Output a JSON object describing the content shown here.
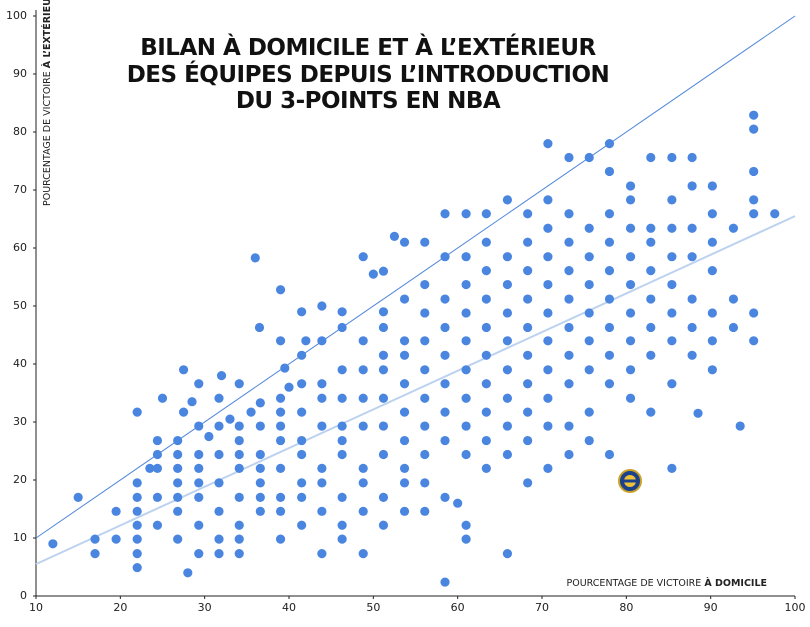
{
  "chart_data": {
    "type": "scatter",
    "title": [
      "BILAN À DOMICILE ET À L’EXTÉRIEUR",
      "DES ÉQUIPES DEPUIS L’INTRODUCTION",
      "DU 3-POINTS EN NBA"
    ],
    "x_label": [
      "POURCENTAGE DE VICTOIRE",
      "À DOMICILE"
    ],
    "y_label": [
      "POURCENTAGE DE VICTOIRE",
      "À L’EXTÉRIEUR"
    ],
    "xlim": [
      10,
      100
    ],
    "ylim": [
      0,
      100
    ],
    "xticks": [
      10,
      20,
      30,
      40,
      50,
      60,
      70,
      80,
      90,
      100
    ],
    "yticks": [
      0,
      10,
      20,
      30,
      40,
      50,
      60,
      70,
      80,
      90,
      100
    ],
    "grid": false,
    "series": [
      {
        "color": "#4a86e0",
        "x": [
          12,
          15,
          17,
          17,
          19.5,
          19.5,
          22,
          22,
          22,
          22,
          22,
          22,
          22,
          22,
          23.5,
          24.4,
          24.4,
          24.4,
          24.4,
          24.4,
          25,
          26.8,
          26.8,
          26.8,
          26.8,
          26.8,
          26.8,
          26.8,
          27.5,
          27.5,
          28,
          28.5,
          29.3,
          29.3,
          29.3,
          29.3,
          29.3,
          29.3,
          29.3,
          29.3,
          30.5,
          31.7,
          31.7,
          31.7,
          31.7,
          31.7,
          31.7,
          31.7,
          32,
          33,
          34.1,
          34.1,
          34.1,
          34.1,
          34.1,
          34.1,
          34.1,
          34.1,
          34.1,
          35.5,
          36,
          36.6,
          36.6,
          36.6,
          36.6,
          36.6,
          36.6,
          36.6,
          36.5,
          39,
          39,
          39,
          39,
          39,
          39,
          39,
          39,
          39,
          39,
          39.5,
          40,
          41.5,
          41.5,
          41.5,
          41.5,
          41.5,
          41.5,
          41.5,
          41.5,
          41.5,
          42,
          43.9,
          43.9,
          43.9,
          43.9,
          43.9,
          43.9,
          43.9,
          43.9,
          43.9,
          46.3,
          46.3,
          46.3,
          46.3,
          46.3,
          46.3,
          46.3,
          46.3,
          46.3,
          46.3,
          48.8,
          48.8,
          48.8,
          48.8,
          48.8,
          48.8,
          48.8,
          48.8,
          48.8,
          50,
          51.2,
          51.2,
          51.2,
          51.2,
          51.2,
          51.2,
          51.2,
          51.2,
          51.2,
          51.2,
          52.5,
          53.7,
          53.7,
          53.7,
          53.7,
          53.7,
          53.7,
          53.7,
          53.7,
          53.7,
          53.7,
          56.1,
          56.1,
          56.1,
          56.1,
          56.1,
          56.1,
          56.1,
          56.1,
          56.1,
          56.1,
          58.5,
          58.5,
          58.5,
          58.5,
          58.5,
          58.5,
          58.5,
          58.5,
          58.5,
          58.5,
          60,
          61,
          61,
          61,
          61,
          61,
          61,
          61,
          61,
          61,
          61,
          61,
          63.4,
          63.4,
          63.4,
          63.4,
          63.4,
          63.4,
          63.4,
          63.4,
          63.4,
          63.4,
          65.9,
          65.9,
          65.9,
          65.9,
          65.9,
          65.9,
          65.9,
          65.9,
          65.9,
          65.9,
          68.3,
          68.3,
          68.3,
          68.3,
          68.3,
          68.3,
          68.3,
          68.3,
          68.3,
          68.3,
          70.7,
          70.7,
          70.7,
          70.7,
          70.7,
          70.7,
          70.7,
          70.7,
          70.7,
          70.7,
          70.7,
          73.2,
          73.2,
          73.2,
          73.2,
          73.2,
          73.2,
          73.2,
          73.2,
          73.2,
          73.2,
          75.6,
          75.6,
          75.6,
          75.6,
          75.6,
          75.6,
          75.6,
          75.6,
          75.6,
          78,
          78,
          78,
          78,
          78,
          78,
          78,
          78,
          78,
          78,
          80.5,
          80.5,
          80.5,
          80.5,
          80.5,
          80.5,
          80.5,
          80.5,
          80.5,
          82.9,
          82.9,
          82.9,
          82.9,
          82.9,
          82.9,
          82.9,
          82.9,
          85.4,
          85.4,
          85.4,
          85.4,
          85.4,
          85.4,
          85.4,
          85.4,
          85.4,
          87.8,
          87.8,
          87.8,
          87.8,
          87.8,
          87.8,
          87.8,
          88.5,
          90.2,
          90.2,
          90.2,
          90.2,
          90.2,
          90.2,
          90.2,
          92.7,
          92.7,
          92.7,
          93.5,
          95.1,
          95.1,
          95.1,
          95.1,
          95.1,
          95.1,
          95.1,
          97.6
        ],
        "values": [
          9,
          17,
          7.3,
          9.8,
          14.6,
          9.8,
          4.9,
          7.3,
          9.8,
          12.2,
          14.6,
          17,
          19.5,
          31.7,
          22,
          12.2,
          17,
          24.4,
          26.8,
          22,
          34.1,
          14.6,
          17,
          19.5,
          22,
          24.4,
          26.8,
          9.8,
          31.7,
          39,
          4,
          33.5,
          12.2,
          17,
          19.5,
          22,
          24.4,
          29.3,
          7.3,
          36.6,
          27.5,
          9.8,
          14.6,
          19.5,
          24.4,
          29.3,
          34.1,
          7.3,
          38,
          30.5,
          7.3,
          12.2,
          17,
          22,
          24.4,
          26.8,
          29.3,
          36.6,
          9.8,
          31.7,
          58.3,
          14.6,
          17,
          19.5,
          22,
          24.4,
          29.3,
          33.3,
          46.3,
          9.8,
          14.6,
          17,
          22,
          26.8,
          29.3,
          31.7,
          34.1,
          44,
          52.8,
          39.3,
          36,
          12.2,
          17,
          19.5,
          24.4,
          26.8,
          31.7,
          36.6,
          41.5,
          49,
          44,
          7.3,
          14.6,
          19.5,
          22,
          29.3,
          34.1,
          36.6,
          44,
          50,
          9.8,
          12.2,
          17,
          24.4,
          26.8,
          29.3,
          34.1,
          39,
          46.3,
          49,
          7.3,
          14.6,
          19.5,
          22,
          29.3,
          34.1,
          39,
          44,
          58.5,
          55.5,
          12.2,
          17,
          24.4,
          29.3,
          34.1,
          39,
          41.5,
          46.3,
          49,
          56,
          62,
          14.6,
          19.5,
          22,
          26.8,
          31.7,
          36.6,
          41.5,
          44,
          51.2,
          61,
          14.6,
          19.5,
          24.4,
          29.3,
          34.1,
          39,
          44,
          48.8,
          53.7,
          61,
          2.4,
          17,
          26.8,
          31.7,
          36.6,
          41.5,
          46.3,
          51.2,
          58.5,
          65.9,
          16,
          9.8,
          12.2,
          24.4,
          29.3,
          34.1,
          39,
          44,
          48.8,
          53.7,
          58.5,
          65.9,
          22,
          26.8,
          31.7,
          36.6,
          41.5,
          46.3,
          51.2,
          56.1,
          61,
          65.9,
          7.3,
          24.4,
          29.3,
          34.1,
          39,
          44,
          48.8,
          53.7,
          58.5,
          68.3,
          19.5,
          26.8,
          31.7,
          36.6,
          41.5,
          46.3,
          51.2,
          56.1,
          61,
          65.9,
          22,
          29.3,
          34.1,
          39,
          44,
          48.8,
          53.7,
          58.5,
          63.4,
          68.3,
          78,
          24.4,
          29.3,
          36.6,
          41.5,
          46.3,
          51.2,
          56.1,
          61,
          65.9,
          75.6,
          26.8,
          31.7,
          39,
          44,
          48.8,
          53.7,
          58.5,
          63.4,
          75.6,
          24.4,
          36.6,
          41.5,
          46.3,
          51.2,
          56.1,
          61,
          65.9,
          73.2,
          78,
          34.1,
          39,
          44,
          48.8,
          53.7,
          58.5,
          63.4,
          68.3,
          70.7,
          31.7,
          41.5,
          46.3,
          51.2,
          56.1,
          61,
          63.4,
          75.6,
          22,
          36.6,
          44,
          48.8,
          53.7,
          58.5,
          63.4,
          68.3,
          75.6,
          41.5,
          46.3,
          51.2,
          58.5,
          63.4,
          70.7,
          75.6,
          31.5,
          39,
          44,
          48.8,
          56.1,
          61,
          65.9,
          70.7,
          46.3,
          51.2,
          63.4,
          29.3,
          44,
          48.8,
          65.9,
          68.3,
          73.2,
          80.5,
          82.9,
          65.9
        ]
      }
    ],
    "lines": [
      {
        "color": "#4f86d9",
        "width": 1,
        "x": [
          10,
          100
        ],
        "values": [
          10,
          100
        ]
      },
      {
        "color": "#bcd2ef",
        "width": 2,
        "x": [
          10,
          100
        ],
        "values": [
          5.5,
          65.5
        ]
      }
    ]
  }
}
